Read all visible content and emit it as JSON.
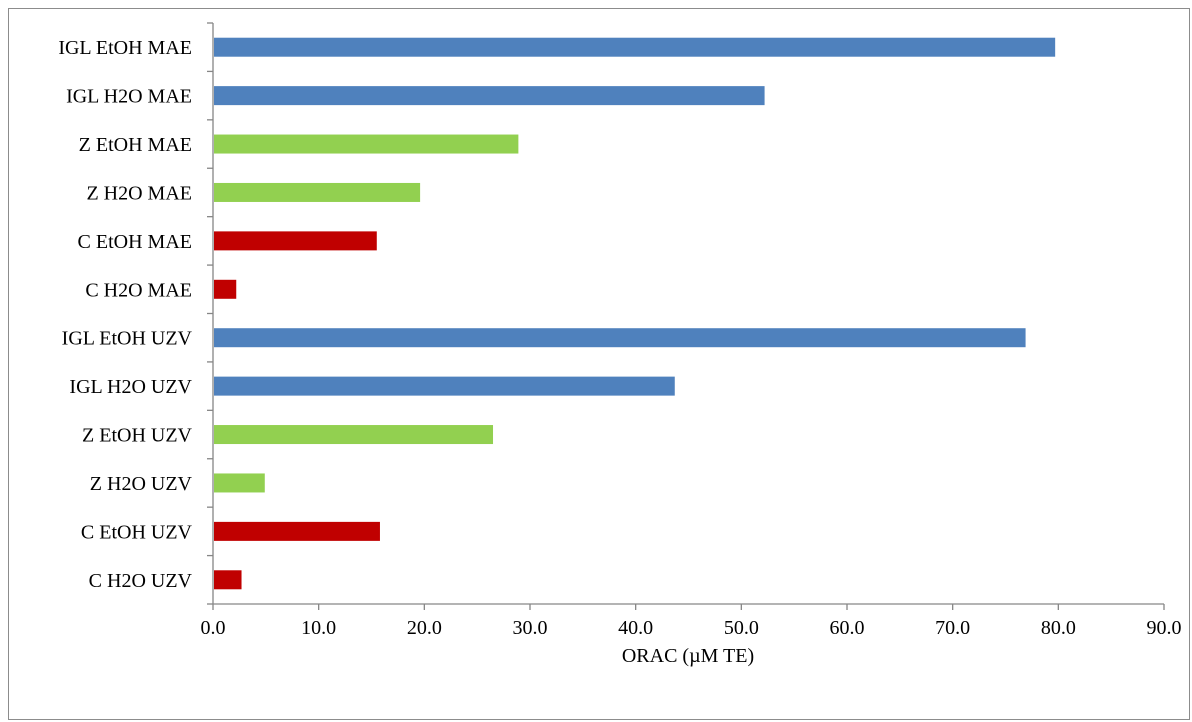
{
  "chart_data": {
    "type": "bar",
    "orientation": "horizontal",
    "title": "",
    "xlabel": "ORAC (µM TE)",
    "ylabel": "",
    "xlim": [
      0,
      90
    ],
    "xticks": [
      "0.0",
      "10.0",
      "20.0",
      "30.0",
      "40.0",
      "50.0",
      "60.0",
      "70.0",
      "80.0",
      "90.0"
    ],
    "grid": false,
    "legend": "none",
    "categories": [
      "IGL EtOH MAE",
      "IGL H2O MAE",
      "Z EtOH MAE",
      "Z H2O MAE",
      "C EtOH MAE",
      "C H2O MAE",
      "IGL EtOH UZV",
      "IGL H2O UZV",
      "Z EtOH UZV",
      "Z H2O UZV",
      "C EtOH UZV",
      "C H2O UZV"
    ],
    "values": [
      79.7,
      52.2,
      28.9,
      19.6,
      15.5,
      2.2,
      76.9,
      43.7,
      26.5,
      4.9,
      15.8,
      2.7
    ],
    "bar_colors": [
      "#4f81bd",
      "#4f81bd",
      "#92d050",
      "#92d050",
      "#c00000",
      "#c00000",
      "#4f81bd",
      "#4f81bd",
      "#92d050",
      "#92d050",
      "#c00000",
      "#c00000"
    ]
  }
}
